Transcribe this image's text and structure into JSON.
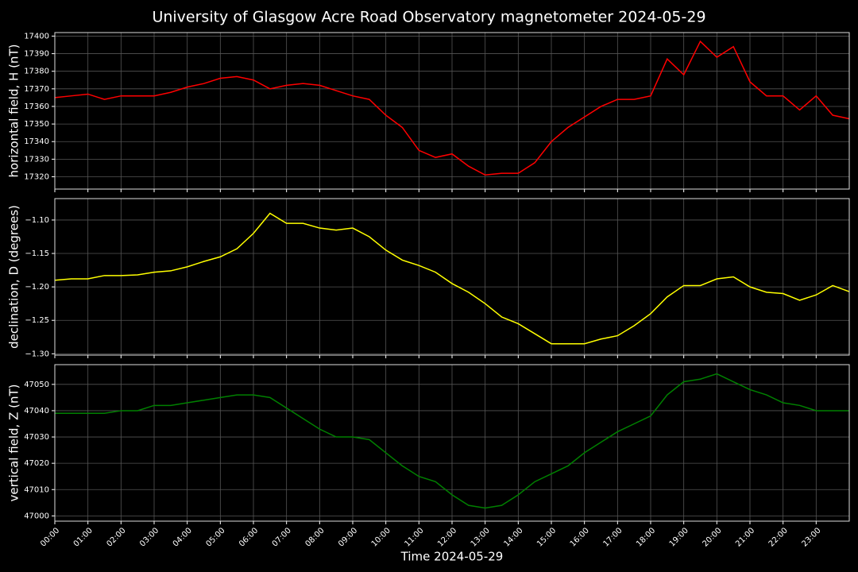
{
  "title": "University of Glasgow Acre Road Observatory magnetometer 2024-05-29",
  "chart_data": [
    {
      "type": "line",
      "ylabel": "horizontal field, H (nT)",
      "grid": true,
      "xlim": [
        0,
        24
      ],
      "ylim": [
        17313,
        17402
      ],
      "yticks": [
        17320,
        17330,
        17340,
        17350,
        17360,
        17370,
        17380,
        17390,
        17400
      ],
      "x": [
        0,
        0.5,
        1,
        1.5,
        2,
        2.5,
        3,
        3.5,
        4,
        4.5,
        5,
        5.5,
        6,
        6.5,
        7,
        7.5,
        8,
        8.5,
        9,
        9.5,
        10,
        10.5,
        11,
        11.5,
        12,
        12.5,
        13,
        13.5,
        14,
        14.5,
        15,
        15.5,
        16,
        16.5,
        17,
        17.5,
        18,
        18.5,
        19,
        19.5,
        20,
        20.5,
        21,
        21.5,
        22,
        22.5,
        23,
        23.5,
        24
      ],
      "series": [
        {
          "color": "#ff0000",
          "values": [
            17365,
            17366,
            17367,
            17364,
            17366,
            17366,
            17366,
            17368,
            17371,
            17373,
            17376,
            17377,
            17375,
            17370,
            17372,
            17373,
            17372,
            17369,
            17366,
            17364,
            17355,
            17348,
            17335,
            17331,
            17333,
            17326,
            17321,
            17322,
            17322,
            17328,
            17340,
            17348,
            17354,
            17360,
            17364,
            17364,
            17366,
            17387,
            17378,
            17397,
            17388,
            17394,
            17374,
            17366,
            17366,
            17358,
            17366,
            17355,
            17353
          ]
        }
      ]
    },
    {
      "type": "line",
      "ylabel": "declination, D (degrees)",
      "grid": true,
      "xlim": [
        0,
        24
      ],
      "ylim": [
        -1.302,
        -1.068
      ],
      "yticks": [
        {
          "value": -1.3,
          "label": "−1.30"
        },
        {
          "value": -1.25,
          "label": "−1.25"
        },
        {
          "value": -1.2,
          "label": "−1.20"
        },
        {
          "value": -1.15,
          "label": "−1.15"
        },
        {
          "value": -1.1,
          "label": "−1.10"
        }
      ],
      "x": [
        0,
        0.5,
        1,
        1.5,
        2,
        2.5,
        3,
        3.5,
        4,
        4.5,
        5,
        5.5,
        6,
        6.5,
        7,
        7.5,
        8,
        8.5,
        9,
        9.5,
        10,
        10.5,
        11,
        11.5,
        12,
        12.5,
        13,
        13.5,
        14,
        14.5,
        15,
        15.5,
        16,
        16.5,
        17,
        17.5,
        18,
        18.5,
        19,
        19.5,
        20,
        20.5,
        21,
        21.5,
        22,
        22.5,
        23,
        23.5,
        24
      ],
      "series": [
        {
          "color": "#ffff00",
          "values": [
            -1.19,
            -1.188,
            -1.188,
            -1.183,
            -1.183,
            -1.182,
            -1.178,
            -1.176,
            -1.17,
            -1.162,
            -1.155,
            -1.143,
            -1.12,
            -1.09,
            -1.105,
            -1.105,
            -1.112,
            -1.115,
            -1.112,
            -1.125,
            -1.145,
            -1.16,
            -1.168,
            -1.178,
            -1.195,
            -1.208,
            -1.225,
            -1.245,
            -1.255,
            -1.27,
            -1.285,
            -1.285,
            -1.285,
            -1.278,
            -1.273,
            -1.258,
            -1.24,
            -1.215,
            -1.198,
            -1.198,
            -1.188,
            -1.185,
            -1.2,
            -1.208,
            -1.21,
            -1.22,
            -1.212,
            -1.198,
            -1.207
          ]
        }
      ]
    },
    {
      "type": "line",
      "ylabel": "vertical field, Z (nT)",
      "xlabel": "Time 2024-05-29",
      "grid": true,
      "xlim": [
        0,
        24
      ],
      "ylim": [
        46998,
        47057.5
      ],
      "yticks": [
        47000,
        47010,
        47020,
        47030,
        47040,
        47050
      ],
      "xticks": [
        {
          "value": 0,
          "label": "00:00"
        },
        {
          "value": 1,
          "label": "01:00"
        },
        {
          "value": 2,
          "label": "02:00"
        },
        {
          "value": 3,
          "label": "03:00"
        },
        {
          "value": 4,
          "label": "04:00"
        },
        {
          "value": 5,
          "label": "05:00"
        },
        {
          "value": 6,
          "label": "06:00"
        },
        {
          "value": 7,
          "label": "07:00"
        },
        {
          "value": 8,
          "label": "08:00"
        },
        {
          "value": 9,
          "label": "09:00"
        },
        {
          "value": 10,
          "label": "10:00"
        },
        {
          "value": 11,
          "label": "11:00"
        },
        {
          "value": 12,
          "label": "12:00"
        },
        {
          "value": 13,
          "label": "13:00"
        },
        {
          "value": 14,
          "label": "14:00"
        },
        {
          "value": 15,
          "label": "15:00"
        },
        {
          "value": 16,
          "label": "16:00"
        },
        {
          "value": 17,
          "label": "17:00"
        },
        {
          "value": 18,
          "label": "18:00"
        },
        {
          "value": 19,
          "label": "19:00"
        },
        {
          "value": 20,
          "label": "20:00"
        },
        {
          "value": 21,
          "label": "21:00"
        },
        {
          "value": 22,
          "label": "22:00"
        },
        {
          "value": 23,
          "label": "23:00"
        }
      ],
      "x": [
        0,
        0.5,
        1,
        1.5,
        2,
        2.5,
        3,
        3.5,
        4,
        4.5,
        5,
        5.5,
        6,
        6.5,
        7,
        7.5,
        8,
        8.5,
        9,
        9.5,
        10,
        10.5,
        11,
        11.5,
        12,
        12.5,
        13,
        13.5,
        14,
        14.5,
        15,
        15.5,
        16,
        16.5,
        17,
        17.5,
        18,
        18.5,
        19,
        19.5,
        20,
        20.5,
        21,
        21.5,
        22,
        22.5,
        23,
        23.5,
        24
      ],
      "series": [
        {
          "color": "#008000",
          "values": [
            47039,
            47039,
            47039,
            47039,
            47040,
            47040,
            47042,
            47042,
            47043,
            47044,
            47045,
            47046,
            47046,
            47045,
            47041,
            47037,
            47033,
            47030,
            47030,
            47029,
            47024,
            47019,
            47015,
            47013,
            47008,
            47004,
            47003,
            47004,
            47008,
            47013,
            47016,
            47019,
            47024,
            47028,
            47032,
            47035,
            47038,
            47046,
            47051,
            47052,
            47054,
            47051,
            47048,
            47046,
            47043,
            47042,
            47040,
            47040,
            47040
          ]
        }
      ]
    }
  ]
}
